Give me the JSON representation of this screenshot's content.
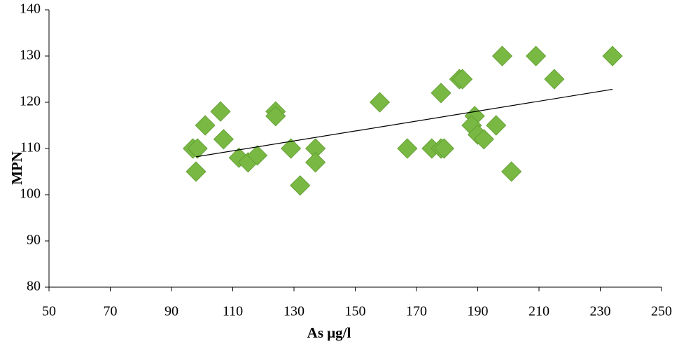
{
  "chart_data": {
    "type": "scatter",
    "x_label": "As μg/l",
    "y_label": "MPN",
    "color": "#78b843",
    "x": [
      97,
      98.5,
      98,
      101,
      106,
      107,
      112,
      115,
      118,
      124,
      124,
      129,
      132,
      137,
      137,
      158,
      167,
      175,
      178,
      179,
      178,
      184,
      185,
      189,
      188,
      190,
      192,
      196,
      198,
      201,
      209,
      215,
      234
    ],
    "y": [
      110,
      110,
      105,
      115,
      118,
      112,
      108,
      107,
      108.5,
      118,
      117,
      110,
      102,
      110,
      107,
      120,
      110,
      110,
      110,
      110,
      122,
      125,
      125,
      117,
      115,
      113,
      112,
      115,
      130,
      105,
      130,
      125,
      130
    ],
    "trendline": {
      "x": [
        98,
        234
      ],
      "y": [
        108.2,
        122.8
      ]
    },
    "xlim": [
      50,
      250
    ],
    "xticks": [
      50,
      70,
      90,
      110,
      130,
      150,
      170,
      190,
      210,
      230,
      250
    ],
    "ylim": [
      80,
      140
    ],
    "yticks": [
      80,
      90,
      100,
      110,
      120,
      130,
      140
    ],
    "grid": false
  }
}
